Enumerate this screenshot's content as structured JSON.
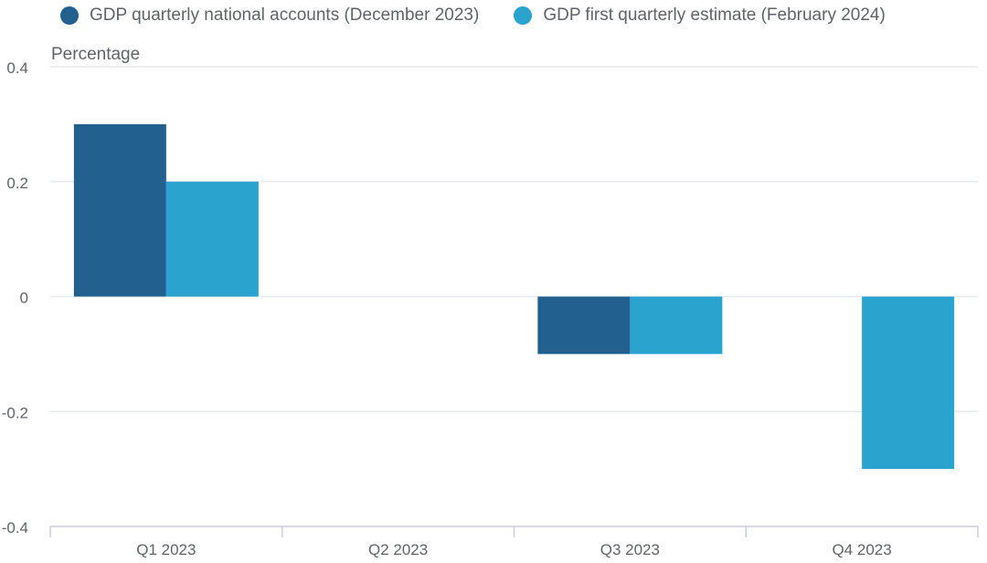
{
  "colors": {
    "series_1": "#22608f",
    "series_2": "#2aa3cf",
    "gridline": "#e6e9ee",
    "axis": "#c9ced6",
    "text": "#5f6368"
  },
  "chart_data": {
    "type": "bar",
    "ylabel": "Percentage",
    "xlabel": "",
    "categories": [
      "Q1 2023",
      "Q2 2023",
      "Q3 2023",
      "Q4 2023"
    ],
    "series": [
      {
        "name": "GDP quarterly national accounts (December 2023)",
        "values": [
          0.3,
          0.0,
          -0.1,
          null
        ]
      },
      {
        "name": "GDP first quarterly estimate (February 2024)",
        "values": [
          0.2,
          0.0,
          -0.1,
          -0.3
        ]
      }
    ],
    "ylim": [
      -0.4,
      0.4
    ],
    "yticks": [
      0.4,
      0.2,
      0,
      -0.2,
      -0.4
    ],
    "ytick_labels": [
      "0.4",
      "0.2",
      "0",
      "-0.2",
      "-0.4"
    ],
    "grid": true,
    "legend_position": "top-left"
  }
}
